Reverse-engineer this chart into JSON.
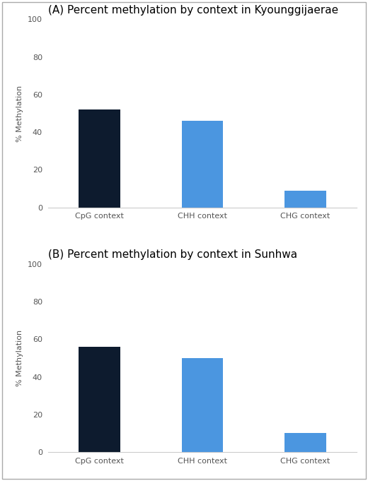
{
  "chart_A": {
    "title": "(A) Percent methylation by context in Kyounggijaerae",
    "categories": [
      "CpG context",
      "CHH context",
      "CHG context"
    ],
    "values": [
      52,
      46,
      9
    ],
    "colors": [
      "#0d1b2e",
      "#4b96e0",
      "#4b96e0"
    ],
    "ylabel": "% Methylation",
    "ylim": [
      0,
      100
    ],
    "yticks": [
      0,
      20,
      40,
      60,
      80,
      100
    ]
  },
  "chart_B": {
    "title": "(B) Percent methylation by context in Sunhwa",
    "categories": [
      "CpG context",
      "CHH context",
      "CHG context"
    ],
    "values": [
      56,
      50,
      10
    ],
    "colors": [
      "#0d1b2e",
      "#4b96e0",
      "#4b96e0"
    ],
    "ylabel": "% Methylation",
    "ylim": [
      0,
      100
    ],
    "yticks": [
      0,
      20,
      40,
      60,
      80,
      100
    ]
  },
  "fig_background": "#ffffff",
  "axes_background": "#ffffff",
  "spine_color": "#cccccc",
  "bar_width": 0.4,
  "title_fontsize": 11,
  "label_fontsize": 8,
  "ylabel_fontsize": 8
}
